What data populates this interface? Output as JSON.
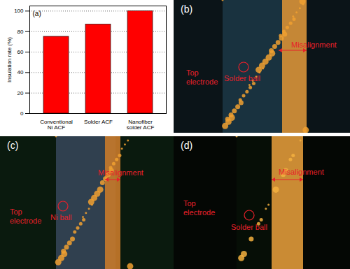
{
  "chart_data": {
    "type": "bar",
    "title": "(a)",
    "categories": [
      "Conventional Ni ACF",
      "Solder ACF",
      "Nanofiber solder ACF"
    ],
    "values": [
      75,
      87,
      100
    ],
    "color": "#ff0000",
    "ylabel": "Insulation rate (%)",
    "ylim": [
      0,
      105
    ],
    "yticks": [
      0,
      20,
      40,
      60,
      80,
      100
    ],
    "grid": true
  },
  "images": [
    {
      "label": "(b)",
      "texts": {
        "electrode": "Top electrode",
        "misalignment": "Misalignment",
        "ball": "Solder ball"
      }
    },
    {
      "label": "(c)",
      "texts": {
        "electrode": "Top electrode",
        "misalignment": "Misalignment",
        "ball": "Ni ball"
      }
    },
    {
      "label": "(d)",
      "texts": {
        "electrode": "Top electrode",
        "misalignment": "Misalignment",
        "ball": "Solder ball"
      }
    }
  ]
}
